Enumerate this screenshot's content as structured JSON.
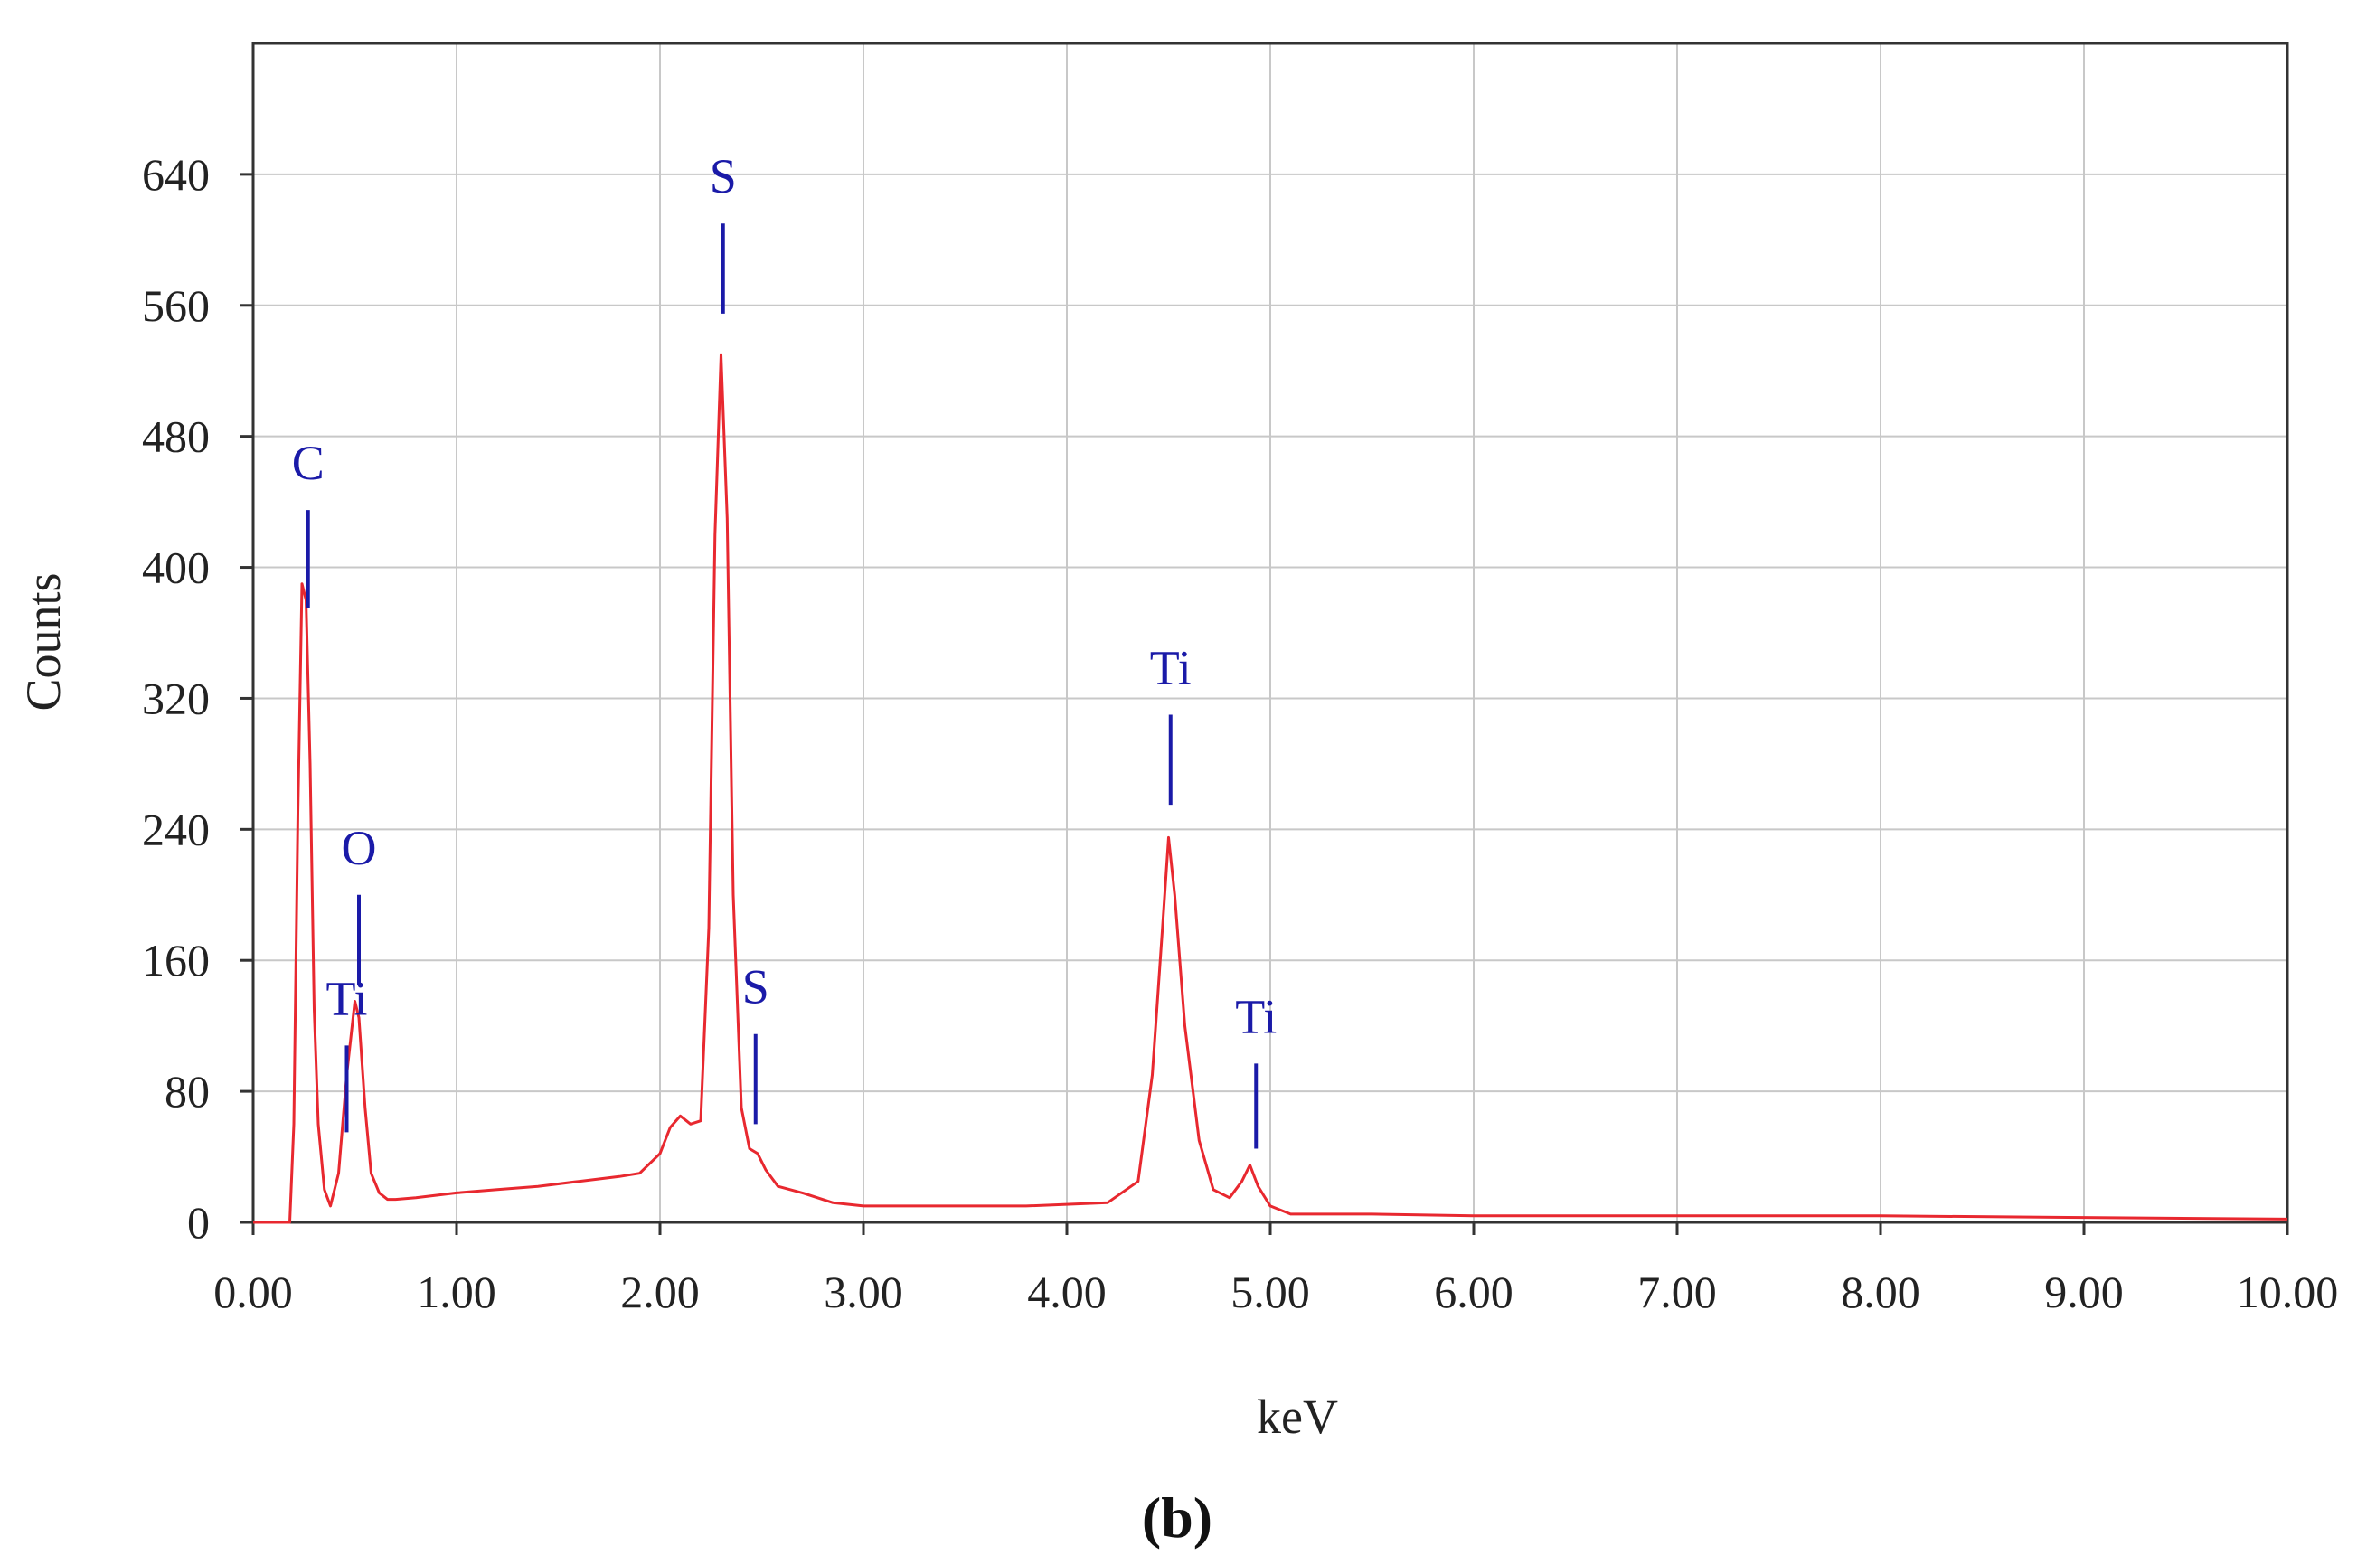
{
  "chart_data": {
    "type": "line",
    "xlabel": "keV",
    "ylabel": "Counts",
    "xlim": [
      0,
      10
    ],
    "ylim": [
      0,
      720
    ],
    "x_ticks": [
      "0.00",
      "1.00",
      "2.00",
      "3.00",
      "4.00",
      "5.00",
      "6.00",
      "7.00",
      "8.00",
      "9.00",
      "10.00"
    ],
    "y_ticks": [
      "0",
      "80",
      "160",
      "240",
      "320",
      "400",
      "480",
      "560",
      "640"
    ],
    "grid": true,
    "line_color": "#e8282f",
    "marker_color": "#1a1aa8",
    "series": [
      {
        "x": [
          0.0,
          0.18,
          0.2,
          0.22,
          0.24,
          0.26,
          0.28,
          0.3,
          0.32,
          0.35,
          0.38,
          0.42,
          0.46,
          0.5,
          0.52,
          0.55,
          0.58,
          0.62,
          0.66,
          0.7,
          0.8,
          1.0,
          1.2,
          1.4,
          1.6,
          1.8,
          1.9,
          2.0,
          2.05,
          2.1,
          2.15,
          2.2,
          2.24,
          2.27,
          2.3,
          2.33,
          2.36,
          2.4,
          2.44,
          2.48,
          2.52,
          2.58,
          2.7,
          2.85,
          3.0,
          3.4,
          3.8,
          4.2,
          4.35,
          4.42,
          4.47,
          4.5,
          4.53,
          4.58,
          4.65,
          4.72,
          4.8,
          4.86,
          4.9,
          4.94,
          5.0,
          5.1,
          5.5,
          6.0,
          7.0,
          8.0,
          9.0,
          10.0
        ],
        "y": [
          0,
          0,
          60,
          250,
          390,
          380,
          280,
          130,
          60,
          20,
          10,
          30,
          90,
          135,
          125,
          70,
          30,
          18,
          14,
          14,
          15,
          18,
          20,
          22,
          25,
          28,
          30,
          42,
          58,
          65,
          60,
          62,
          180,
          420,
          530,
          430,
          200,
          70,
          45,
          42,
          32,
          22,
          18,
          12,
          10,
          10,
          10,
          12,
          25,
          90,
          180,
          235,
          200,
          120,
          50,
          20,
          15,
          25,
          35,
          22,
          10,
          5,
          5,
          4,
          4,
          4,
          3,
          2
        ]
      }
    ],
    "annotations": [
      {
        "label": "C",
        "x": 0.27,
        "mark_top": 435,
        "mark_bottom": 375
      },
      {
        "label": "O",
        "x": 0.52,
        "mark_top": 200,
        "mark_bottom": 145
      },
      {
        "label": "Ti",
        "x": 0.46,
        "mark_top": 108,
        "mark_bottom": 55
      },
      {
        "label": "S",
        "x": 2.31,
        "mark_top": 610,
        "mark_bottom": 555
      },
      {
        "label": "S",
        "x": 2.47,
        "mark_top": 115,
        "mark_bottom": 60
      },
      {
        "label": "Ti",
        "x": 4.51,
        "mark_top": 310,
        "mark_bottom": 255
      },
      {
        "label": "Ti",
        "x": 4.93,
        "mark_top": 97,
        "mark_bottom": 45
      }
    ],
    "panel_label": "(b)"
  }
}
